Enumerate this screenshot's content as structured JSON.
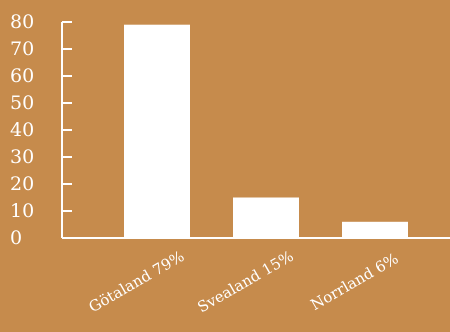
{
  "colors": {
    "background": "#C68B4C",
    "bar": "#FFFFFF",
    "axis": "#FFFFFF",
    "text": "#FFFFFF"
  },
  "chart_data": {
    "type": "bar",
    "title": "",
    "xlabel": "",
    "ylabel": "",
    "categories": [
      "Götaland 79%",
      "Svealand 15%",
      "Norrland 6%"
    ],
    "values": [
      79,
      15,
      6
    ],
    "ylim": [
      0,
      80
    ],
    "yticks": [
      0,
      10,
      20,
      30,
      40,
      50,
      60,
      70,
      80
    ],
    "grid": false,
    "legend": "none"
  }
}
